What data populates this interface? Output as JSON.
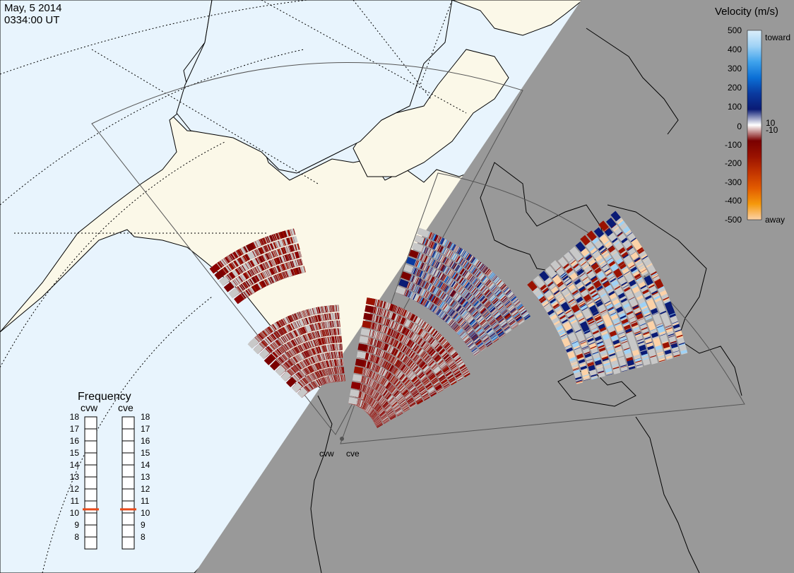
{
  "header": {
    "date": "May, 5 2014",
    "time": "0334:00 UT"
  },
  "colors": {
    "ocean_day": "#e8f4fd",
    "land_day": "#fbf8e8",
    "night": "#999999",
    "coast": "#000000",
    "ground_scatter": "#c8c8c8"
  },
  "radars": [
    {
      "id": "cvw",
      "label": "cvw"
    },
    {
      "id": "cve",
      "label": "cve"
    }
  ],
  "velocity_scale": {
    "title": "Velocity (m/s)",
    "toward_label": "toward",
    "away_label": "away",
    "ticks": [
      "500",
      "400",
      "300",
      "200",
      "100",
      "10",
      "0",
      "-10",
      "-100",
      "-200",
      "-300",
      "-400",
      "-500"
    ],
    "gradient": [
      "#dbeefa",
      "#9fd2f5",
      "#3ea2ec",
      "#0b6fd6",
      "#0a3a9f",
      "#0a1b75",
      "#ffffff",
      "#7a0000",
      "#9a1200",
      "#c23400",
      "#e25b00",
      "#f5990b",
      "#fcd2a8"
    ]
  },
  "frequency_panel": {
    "title": "Frequency",
    "columns": [
      "cvw",
      "cve"
    ],
    "ticks": [
      "18",
      "17",
      "16",
      "15",
      "14",
      "13",
      "12",
      "11",
      "10",
      "9",
      "8"
    ],
    "cvw_mhz": 10.8,
    "cve_mhz": 10.8,
    "marker_color": "#e84a1a"
  }
}
